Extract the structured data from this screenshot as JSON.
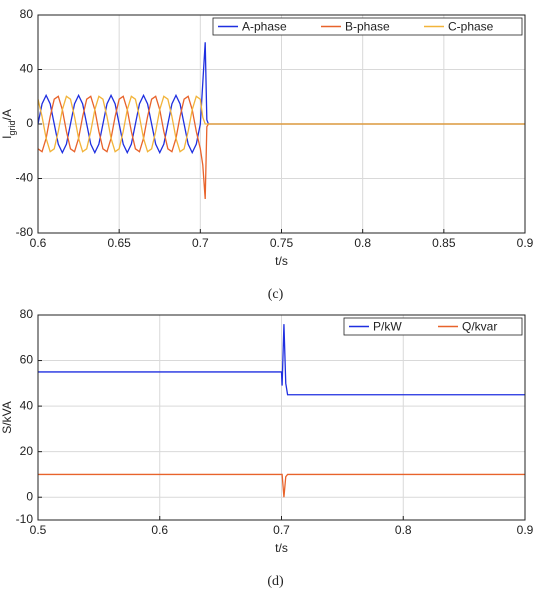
{
  "chart_data": [
    {
      "type": "line",
      "caption": "(c)",
      "xlabel": "t/s",
      "ylabel": [
        "I",
        "grid",
        "/A"
      ],
      "xlim": [
        0.6,
        0.9
      ],
      "xticks": [
        0.6,
        0.65,
        0.7,
        0.75,
        0.8,
        0.85,
        0.9
      ],
      "ylim": [
        -80,
        80
      ],
      "yticks": [
        -80,
        -40,
        0,
        40,
        80
      ],
      "grid": true,
      "legend": "upper right",
      "x": [
        0.6,
        0.6025,
        0.605,
        0.6075,
        0.61,
        0.6125,
        0.615,
        0.6175,
        0.62,
        0.6225,
        0.625,
        0.6275,
        0.63,
        0.6325,
        0.635,
        0.6375,
        0.64,
        0.6425,
        0.645,
        0.6475,
        0.65,
        0.6525,
        0.655,
        0.6575,
        0.66,
        0.6625,
        0.665,
        0.6675,
        0.67,
        0.6725,
        0.675,
        0.6775,
        0.68,
        0.6825,
        0.685,
        0.6875,
        0.69,
        0.6925,
        0.695,
        0.6975,
        0.7,
        0.7015,
        0.703,
        0.704,
        0.705,
        0.9
      ],
      "series": [
        {
          "name": "A-phase",
          "color": "#1f2fe0",
          "values": [
            0,
            14.8,
            21,
            14.8,
            0,
            -14.8,
            -21,
            -14.8,
            0,
            14.8,
            21,
            14.8,
            0,
            -14.8,
            -21,
            -14.8,
            0,
            14.8,
            21,
            14.8,
            0,
            -14.8,
            -21,
            -14.8,
            0,
            14.8,
            21,
            14.8,
            0,
            -14.8,
            -21,
            -14.8,
            0,
            14.8,
            21,
            14.8,
            0,
            -14.8,
            -21,
            -14.8,
            0,
            30,
            60,
            3,
            0,
            0
          ]
        },
        {
          "name": "B-phase",
          "color": "#e8632b",
          "values": [
            -18.2,
            -20.3,
            -10.5,
            5.4,
            18.2,
            20.3,
            10.5,
            -5.4,
            -18.2,
            -20.3,
            -10.5,
            5.4,
            18.2,
            20.3,
            10.5,
            -5.4,
            -18.2,
            -20.3,
            -10.5,
            5.4,
            18.2,
            20.3,
            10.5,
            -5.4,
            -18.2,
            -20.3,
            -10.5,
            5.4,
            18.2,
            20.3,
            10.5,
            -5.4,
            -18.2,
            -20.3,
            -10.5,
            5.4,
            18.2,
            20.3,
            10.5,
            -5.4,
            -18.2,
            -30,
            -55,
            -2,
            0,
            0
          ]
        },
        {
          "name": "C-phase",
          "color": "#f2b43a",
          "values": [
            18.2,
            5.4,
            -10.5,
            -20.3,
            -18.2,
            -5.4,
            10.5,
            20.3,
            18.2,
            5.4,
            -10.5,
            -20.3,
            -18.2,
            -5.4,
            10.5,
            20.3,
            18.2,
            5.4,
            -10.5,
            -20.3,
            -18.2,
            -5.4,
            10.5,
            20.3,
            18.2,
            5.4,
            -10.5,
            -20.3,
            -18.2,
            -5.4,
            10.5,
            20.3,
            18.2,
            5.4,
            -10.5,
            -20.3,
            -18.2,
            -5.4,
            10.5,
            20.3,
            18.2,
            5,
            0,
            0,
            0,
            0
          ]
        }
      ]
    },
    {
      "type": "line",
      "caption": "(d)",
      "xlabel": "t/s",
      "ylabel": "S/kVA",
      "xlim": [
        0.5,
        0.9
      ],
      "xticks": [
        0.5,
        0.6,
        0.7,
        0.8,
        0.9
      ],
      "ylim": [
        -10,
        80
      ],
      "yticks": [
        -10,
        0,
        20,
        40,
        60,
        80
      ],
      "grid": true,
      "legend": "upper right",
      "x": [
        0.5,
        0.7,
        0.7005,
        0.702,
        0.7035,
        0.705,
        0.9
      ],
      "series": [
        {
          "name": "P/kW",
          "color": "#1f2fe0",
          "values": [
            55,
            55,
            49,
            76,
            50,
            45,
            45
          ]
        },
        {
          "name": "Q/kvar",
          "color": "#e8632b",
          "values": [
            10,
            10,
            10,
            0,
            9,
            10,
            10
          ]
        }
      ]
    }
  ]
}
